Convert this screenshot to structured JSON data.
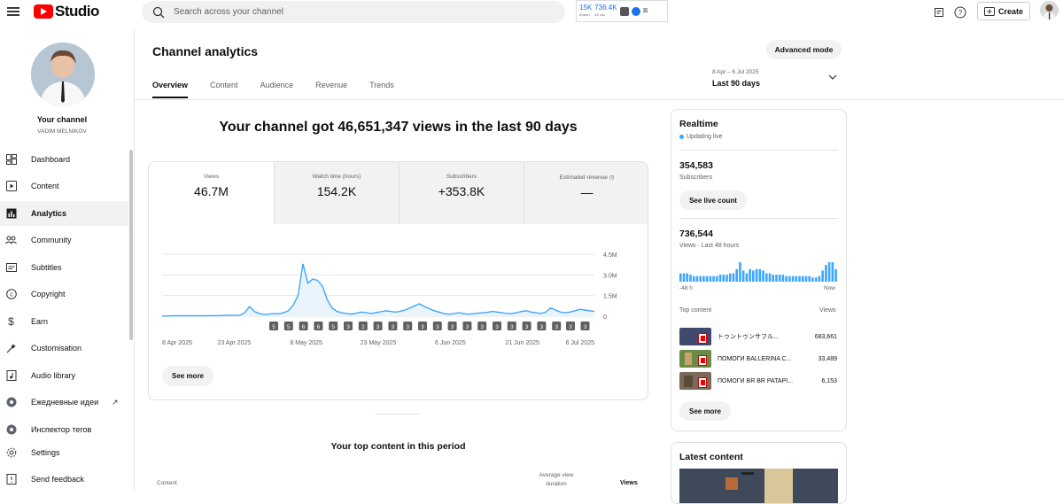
{
  "topbar": {
    "logo_text": "Studio",
    "search_placeholder": "Search across your channel",
    "ext_stat1_value": "15K",
    "ext_stat1_label": "60мин",
    "ext_stat2_value": "736.4K",
    "ext_stat2_label": "48 час",
    "create_label": "Create"
  },
  "channel": {
    "title": "Your channel",
    "name": "VADIM MELNIKOV"
  },
  "sidebar": {
    "items": [
      {
        "label": "Dashboard",
        "icon": "dashboard-icon"
      },
      {
        "label": "Content",
        "icon": "content-icon"
      },
      {
        "label": "Analytics",
        "icon": "analytics-icon",
        "active": true
      },
      {
        "label": "Community",
        "icon": "community-icon"
      },
      {
        "label": "Subtitles",
        "icon": "subtitles-icon"
      },
      {
        "label": "Copyright",
        "icon": "copyright-icon"
      },
      {
        "label": "Earn",
        "icon": "earn-icon"
      },
      {
        "label": "Customisation",
        "icon": "customisation-icon"
      },
      {
        "label": "Audio library",
        "icon": "audio-library-icon"
      },
      {
        "label": "Ежедневные идеи",
        "icon": "ideas-icon"
      },
      {
        "label": "Инспектор тегов",
        "icon": "tags-icon"
      },
      {
        "label": "Settings",
        "icon": "settings-icon"
      },
      {
        "label": "Send feedback",
        "icon": "feedback-icon"
      }
    ]
  },
  "page": {
    "title": "Channel analytics",
    "advanced_mode": "Advanced mode",
    "tabs": [
      "Overview",
      "Content",
      "Audience",
      "Revenue",
      "Trends"
    ],
    "active_tab": "Overview",
    "range_dates": "8 Apr – 6 Jul 2025",
    "range_label": "Last 90 days",
    "headline": "Your channel got 46,651,347 views in the last 90 days",
    "see_more": "See more",
    "top_content_title": "Your top content in this period",
    "col_content": "Content",
    "col_avg_view_1": "Average view",
    "col_avg_view_2": "duration",
    "col_views": "Views"
  },
  "metrics": [
    {
      "label": "Views",
      "value": "46.7M"
    },
    {
      "label": "Watch time (hours)",
      "value": "154.2K"
    },
    {
      "label": "Subscribers",
      "value": "+353.8K"
    },
    {
      "label": "Estimated revenue",
      "value": "—"
    }
  ],
  "chart_data": {
    "type": "area",
    "x_tick_labels": [
      "8 Apr 2025",
      "23 Apr 2025",
      "8 May 2025",
      "23 May 2025",
      "6 Jun 2025",
      "21 Jun 2025",
      "6 Jul 2025"
    ],
    "y_tick_labels": [
      "4.5M",
      "3.0M",
      "1.5M",
      "0"
    ],
    "ylim": [
      0,
      4500000
    ],
    "values": [
      20000,
      22000,
      25000,
      30000,
      35000,
      35000,
      40000,
      30000,
      35000,
      40000,
      45000,
      40000,
      50000,
      60000,
      65000,
      60000,
      70000,
      250000,
      700000,
      350000,
      200000,
      120000,
      150000,
      200000,
      180000,
      250000,
      400000,
      800000,
      1500000,
      3800000,
      2400000,
      2700000,
      2600000,
      2200000,
      1200000,
      600000,
      350000,
      250000,
      200000,
      150000,
      220000,
      300000,
      250000,
      200000,
      260000,
      320000,
      400000,
      350000,
      300000,
      350000,
      450000,
      600000,
      750000,
      900000,
      700000,
      550000,
      400000,
      300000,
      200000,
      150000,
      180000,
      250000,
      200000,
      150000,
      180000,
      220000,
      250000,
      280000,
      350000,
      300000,
      250000,
      200000,
      200000,
      250000,
      350000,
      400000,
      300000,
      250000,
      200000,
      300000,
      600000,
      450000,
      300000,
      250000,
      300000,
      400000,
      500000,
      450000,
      400000,
      350000
    ],
    "markers": [
      "5",
      "5",
      "6",
      "6",
      "5",
      "3",
      "2",
      "3",
      "3",
      "3",
      "3",
      "3",
      "3",
      "3",
      "3",
      "3",
      "3",
      "3",
      "3",
      "3",
      "3",
      "3"
    ],
    "series_color": "#3ea6ff"
  },
  "realtime": {
    "title": "Realtime",
    "status": "Updating live",
    "subscribers_value": "354,583",
    "subscribers_label": "Subscribers",
    "live_count_btn": "See live count",
    "views_value": "736,544",
    "views_label": "Views · Last 48 hours",
    "axis_start": "-48 h",
    "axis_end": "Now",
    "bars": [
      6,
      6,
      6,
      5,
      4,
      4,
      4,
      4,
      4,
      4,
      4,
      4,
      5,
      5,
      5,
      6,
      6,
      9,
      14,
      8,
      6,
      9,
      8,
      9,
      9,
      8,
      6,
      6,
      5,
      5,
      5,
      5,
      4,
      4,
      4,
      4,
      4,
      4,
      4,
      4,
      3,
      3,
      4,
      8,
      12,
      14,
      14,
      9
    ],
    "top_content_label": "Top content",
    "views_col": "Views",
    "items": [
      {
        "title": "トゥントゥンサフル...",
        "views": "683,661"
      },
      {
        "title": "ПОМОГИ BALLERINA C...",
        "views": "33,489"
      },
      {
        "title": "ПОМОГИ BR BR PATAPI...",
        "views": "6,153"
      }
    ],
    "see_more": "See more"
  },
  "latest": {
    "title": "Latest content"
  },
  "colors": {
    "accent": "#3ea6ff",
    "brand": "#ff0000"
  }
}
